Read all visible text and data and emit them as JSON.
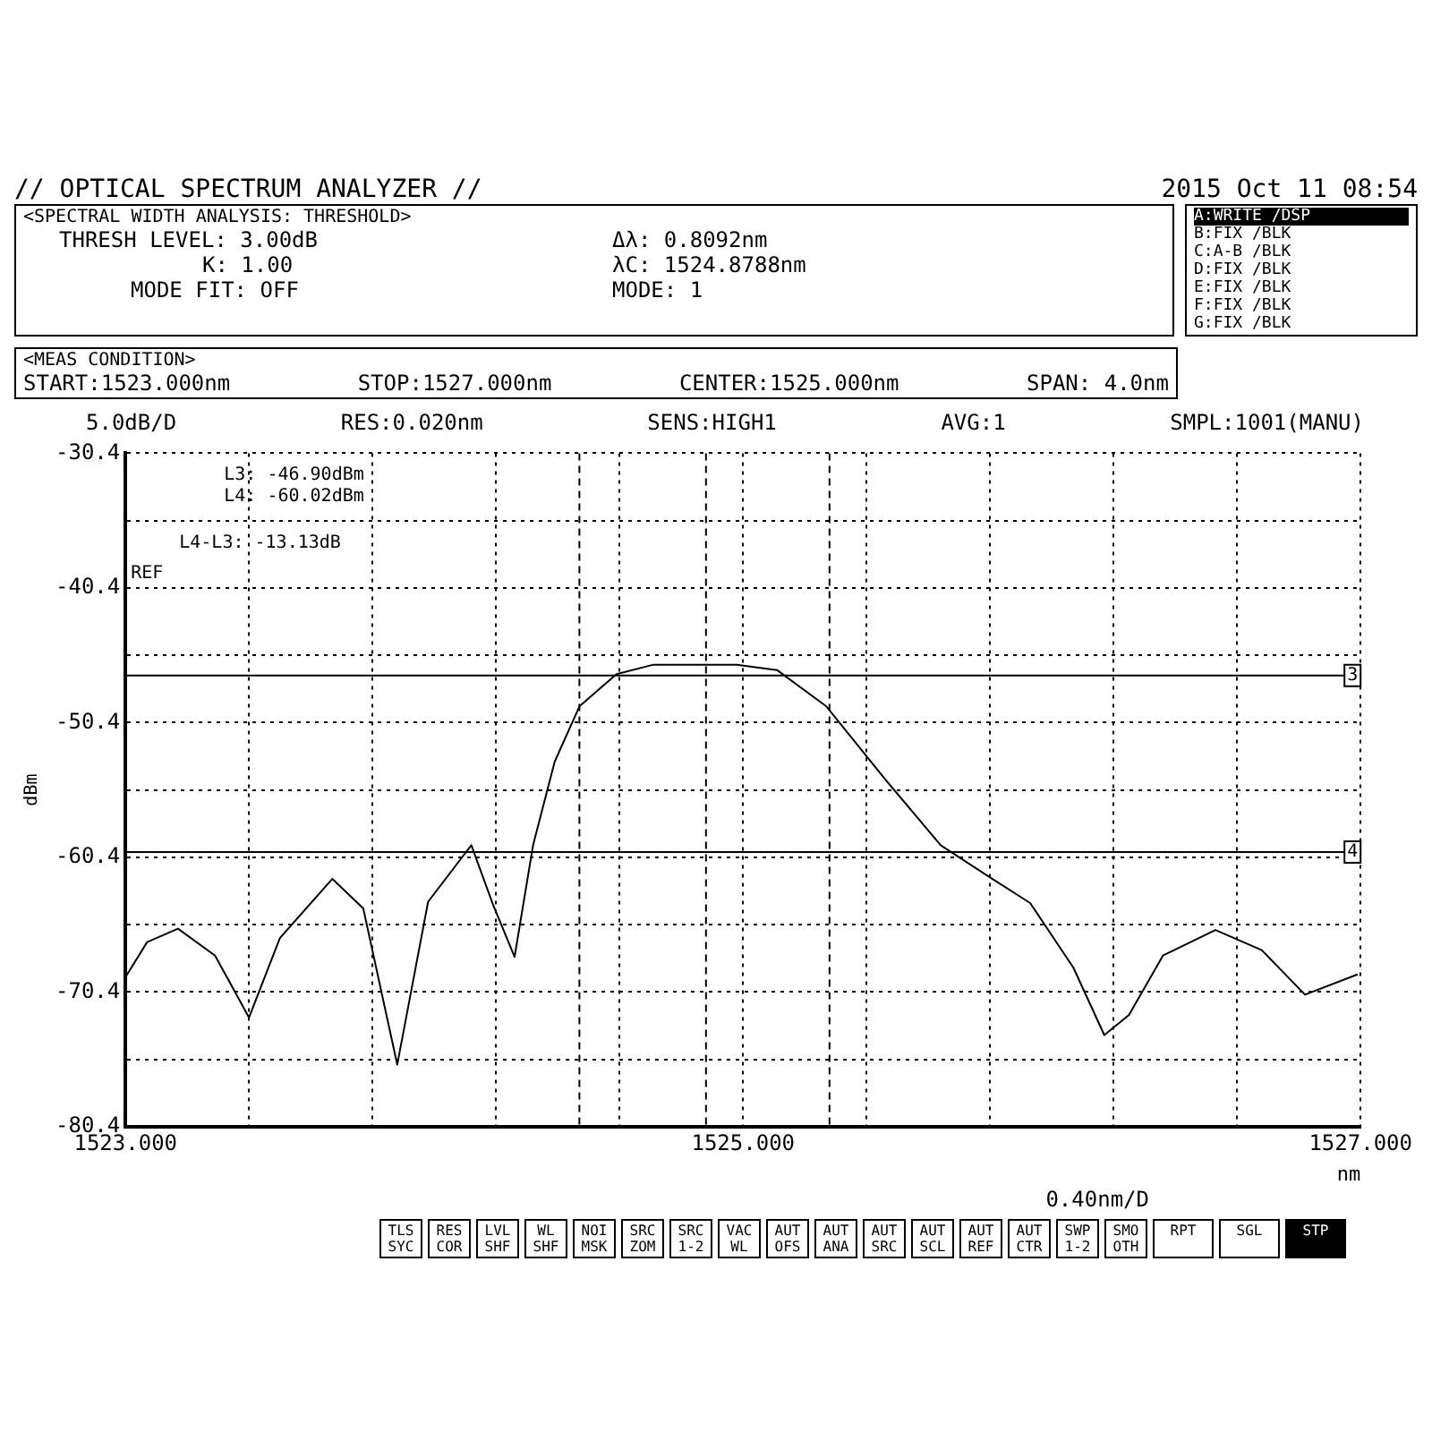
{
  "chart_data": {
    "type": "line",
    "title": "// OPTICAL SPECTRUM ANALYZER //",
    "subtitle": "2015 Oct 11 08:54",
    "xlabel": "nm",
    "ylabel": "dBm",
    "x": [
      1523.0,
      1523.07,
      1523.17,
      1523.29,
      1523.4,
      1523.5,
      1523.67,
      1523.77,
      1523.88,
      1523.98,
      1524.12,
      1524.19,
      1524.26,
      1524.32,
      1524.39,
      1524.47,
      1524.59,
      1524.71,
      1524.98,
      1525.11,
      1525.27,
      1525.46,
      1525.64,
      1525.8,
      1525.93,
      1526.07,
      1526.17,
      1526.25,
      1526.36,
      1526.53,
      1526.68,
      1526.82,
      1526.99
    ],
    "series": [
      {
        "color": "#000000",
        "values": [
          -69.3,
          -66.7,
          -65.7,
          -67.7,
          -72.3,
          -66.4,
          -62.0,
          -64.2,
          -75.8,
          -63.7,
          -59.5,
          -63.9,
          -67.8,
          -59.5,
          -53.3,
          -49.2,
          -46.8,
          -46.1,
          -46.1,
          -46.5,
          -49.2,
          -54.6,
          -59.5,
          -61.9,
          -63.8,
          -68.6,
          -73.6,
          -72.1,
          -67.7,
          -65.8,
          -67.3,
          -70.6,
          -69.1
        ]
      }
    ],
    "xlim": [
      1523,
      1527
    ],
    "xticks": [
      {
        "value": 1523,
        "label": "1523.000"
      },
      {
        "value": 1523.4,
        "label": null
      },
      {
        "value": 1523.8,
        "label": null
      },
      {
        "value": 1524.2,
        "label": null
      },
      {
        "value": 1524.6,
        "label": null
      },
      {
        "value": 1525,
        "label": "1525.000"
      },
      {
        "value": 1525.4,
        "label": null
      },
      {
        "value": 1525.8,
        "label": null
      },
      {
        "value": 1526.2,
        "label": null
      },
      {
        "value": 1526.6,
        "label": null
      },
      {
        "value": 1527,
        "label": "1527.000"
      }
    ],
    "ylim": [
      -80.4,
      -30.4
    ],
    "yticks": [
      -80.4,
      {
        "value": -75.4,
        "label": null
      },
      -70.4,
      {
        "value": -65.4,
        "label": null
      },
      -60.4,
      {
        "value": -55.4,
        "label": null
      },
      -50.4,
      {
        "value": -45.4,
        "label": null
      },
      -40.4,
      {
        "value": -35.4,
        "label": null
      },
      -30.4
    ],
    "grid": true,
    "marker": "none",
    "line_style": "solid",
    "legend": false,
    "ref_lines": [
      {
        "axis": "y",
        "value": -46.9,
        "line_style": "solid",
        "color": "#000000"
      },
      {
        "axis": "y",
        "value": -60.02,
        "line_style": "solid",
        "color": "#000000"
      },
      {
        "axis": "x",
        "value": 1524.47,
        "line_style": "dashed",
        "color": "#000000"
      },
      {
        "axis": "x",
        "value": 1524.88,
        "line_style": "dashed",
        "color": "#000000"
      },
      {
        "axis": "x",
        "value": 1525.28,
        "line_style": "dashed",
        "color": "#000000"
      }
    ],
    "annotations": [
      "<SPECTRAL WIDTH ANALYSIS: THRESHOLD>",
      "THRESH LEVEL:  3.00dB",
      "K:  1.00",
      "MODE FIT:  OFF",
      "Δλ:  0.8092nm",
      "λC:  1524.8788nm",
      "MODE:  1",
      "A:WRITE  /DSP",
      "B:FIX  /BLK",
      "C:A-B  /BLK",
      "D:FIX  /BLK",
      "E:FIX  /BLK",
      "F:FIX  /BLK",
      "G:FIX  /BLK",
      "<MEAS CONDITION>",
      "START:1523.000nm",
      "STOP:1527.000nm",
      "CENTER:1525.000nm",
      "SPAN:  4.0nm",
      "5.0dB/D",
      "RES:0.020nm",
      "SENS:HIGH1",
      "AVG:1",
      "SMPL:1001(MANU)",
      "L3: -46.90dBm",
      "L4: -60.02dBm",
      "L4-L3: -13.13dB",
      "REF",
      "0.40nm/D",
      "TLS SYC",
      "RES COR",
      "LVL SHF",
      "WL SHF",
      "NOI MSK",
      "SRC ZOM",
      "SRC 1-2",
      "VAC WL",
      "AUT OFS",
      "AUT ANA",
      "AUT SRC",
      "AUT SCL",
      "AUT REF",
      "AUT CTR",
      "SWP 1-2",
      "SMO OTH",
      "RPT",
      "SGL",
      "STP",
      "3",
      "4"
    ]
  }
}
